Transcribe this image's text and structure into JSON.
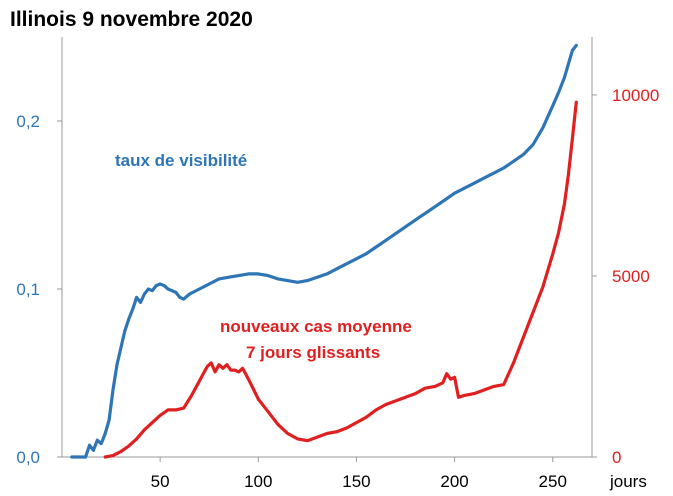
{
  "chart_data": {
    "type": "line",
    "title": "Illinois 9 novembre 2020",
    "xlabel": "jours",
    "xlim": [
      0,
      270
    ],
    "x_ticks": [
      "50",
      "100",
      "150",
      "200",
      "250"
    ],
    "y_left": {
      "range": [
        0,
        0.25
      ],
      "ticks": [
        "0,0",
        "0,1",
        "0,2"
      ],
      "color": "#2e75b6"
    },
    "y_right": {
      "range": [
        0,
        11600
      ],
      "ticks": [
        "0",
        "5000",
        "10000"
      ],
      "color": "#e02020"
    },
    "annotations": {
      "visibility": "taux de visibilité",
      "cases_line1": "nouveaux cas moyenne",
      "cases_line2": "7 jours glissants"
    },
    "series": [
      {
        "axis": "left",
        "color": "#2e75b6",
        "x": [
          5,
          12,
          14,
          16,
          18,
          20,
          22,
          24,
          26,
          28,
          30,
          32,
          34,
          36,
          38,
          40,
          42,
          44,
          46,
          48,
          50,
          52,
          54,
          56,
          58,
          60,
          62,
          65,
          70,
          75,
          80,
          85,
          90,
          95,
          100,
          105,
          110,
          115,
          120,
          125,
          130,
          135,
          140,
          145,
          150,
          155,
          160,
          165,
          170,
          175,
          180,
          185,
          190,
          195,
          200,
          205,
          210,
          215,
          220,
          225,
          230,
          235,
          240,
          245,
          250,
          253,
          256,
          258,
          260,
          262
        ],
        "y": [
          0.0,
          0.0,
          0.007,
          0.004,
          0.01,
          0.008,
          0.014,
          0.022,
          0.04,
          0.055,
          0.065,
          0.075,
          0.082,
          0.088,
          0.095,
          0.092,
          0.097,
          0.1,
          0.099,
          0.102,
          0.103,
          0.102,
          0.1,
          0.099,
          0.098,
          0.095,
          0.094,
          0.097,
          0.1,
          0.103,
          0.106,
          0.107,
          0.108,
          0.109,
          0.109,
          0.108,
          0.106,
          0.105,
          0.104,
          0.105,
          0.107,
          0.109,
          0.112,
          0.115,
          0.118,
          0.121,
          0.125,
          0.129,
          0.133,
          0.137,
          0.141,
          0.145,
          0.149,
          0.153,
          0.157,
          0.16,
          0.163,
          0.166,
          0.169,
          0.172,
          0.176,
          0.18,
          0.186,
          0.196,
          0.209,
          0.217,
          0.226,
          0.234,
          0.242,
          0.245
        ]
      },
      {
        "axis": "right",
        "color": "#e02020",
        "x": [
          22,
          26,
          30,
          34,
          38,
          42,
          46,
          50,
          54,
          58,
          62,
          66,
          70,
          72,
          74,
          76,
          78,
          80,
          82,
          84,
          86,
          88,
          90,
          92,
          95,
          100,
          105,
          110,
          115,
          120,
          125,
          130,
          135,
          140,
          145,
          150,
          155,
          160,
          165,
          170,
          175,
          180,
          185,
          190,
          194,
          196,
          198,
          200,
          202,
          205,
          210,
          215,
          220,
          225,
          230,
          235,
          240,
          245,
          250,
          253,
          256,
          258,
          260,
          262
        ],
        "y": [
          0,
          40,
          150,
          300,
          500,
          750,
          950,
          1150,
          1300,
          1300,
          1350,
          1700,
          2100,
          2300,
          2500,
          2600,
          2350,
          2550,
          2450,
          2550,
          2400,
          2400,
          2350,
          2450,
          2150,
          1600,
          1250,
          900,
          650,
          500,
          450,
          550,
          650,
          700,
          800,
          950,
          1100,
          1300,
          1450,
          1550,
          1650,
          1750,
          1900,
          1950,
          2050,
          2300,
          2150,
          2200,
          1650,
          1700,
          1750,
          1850,
          1950,
          2000,
          2600,
          3300,
          4000,
          4700,
          5600,
          6200,
          7000,
          7800,
          8800,
          9800
        ]
      }
    ]
  }
}
